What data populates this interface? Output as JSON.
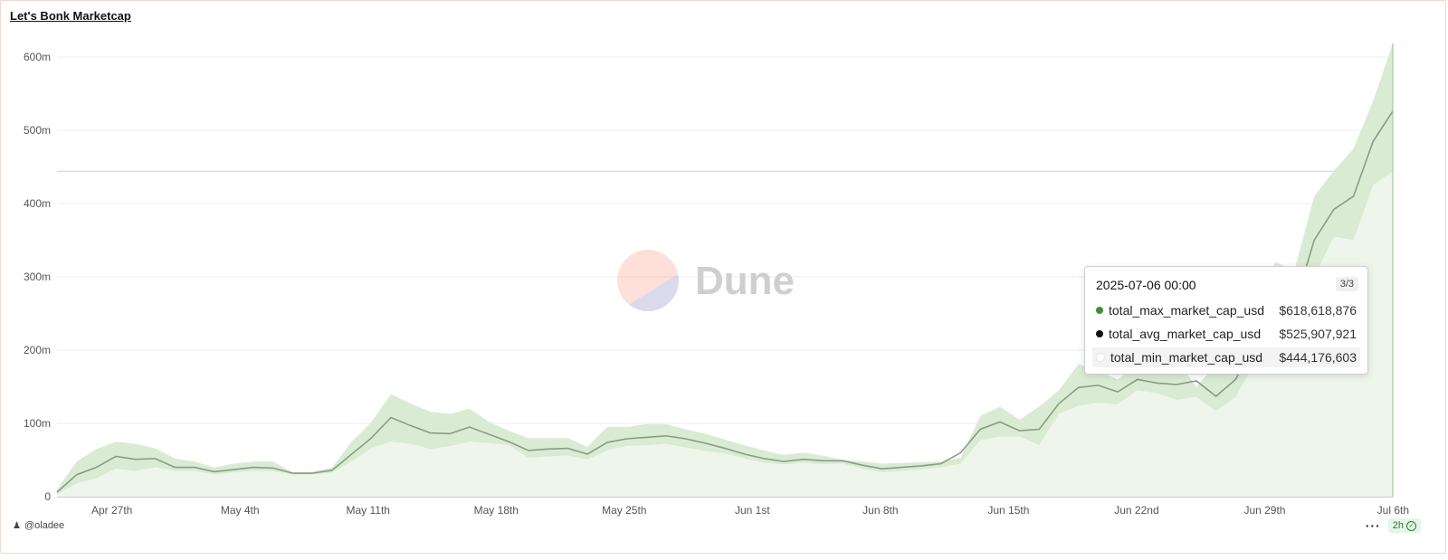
{
  "title": "Let's Bonk Marketcap",
  "author": "@oladee",
  "refresh_label": "2h",
  "menu_label": "···",
  "watermark": "Dune",
  "colors": {
    "band_fill": "#d9ecd3",
    "avg_line": "#8a9a88",
    "max_dot": "#3f8f2f",
    "avg_dot": "#111111",
    "min_dot": "#ffffff"
  },
  "tooltip": {
    "date": "2025-07-06 00:00",
    "page": "3/3",
    "rows": [
      {
        "name": "total_max_market_cap_usd",
        "value": "$618,618,876"
      },
      {
        "name": "total_avg_market_cap_usd",
        "value": "$525,907,921"
      },
      {
        "name": "total_min_market_cap_usd",
        "value": "$444,176,603"
      }
    ]
  },
  "chart_data": {
    "type": "area",
    "x_start": "2025-04-24",
    "x_end": "2025-07-06",
    "x_tick_labels": [
      "Apr 27th",
      "May 4th",
      "May 11th",
      "May 18th",
      "May 25th",
      "Jun 1st",
      "Jun 8th",
      "Jun 15th",
      "Jun 22nd",
      "Jun 29th",
      "Jul 6th"
    ],
    "x_tick_dates": [
      "2025-04-27",
      "2025-05-04",
      "2025-05-11",
      "2025-05-18",
      "2025-05-25",
      "2025-06-01",
      "2025-06-08",
      "2025-06-15",
      "2025-06-22",
      "2025-06-29",
      "2025-07-06"
    ],
    "y_tick_labels": [
      "0",
      "100m",
      "200m",
      "300m",
      "400m",
      "500m",
      "600m"
    ],
    "y_tick_values": [
      0,
      100,
      200,
      300,
      400,
      500,
      600
    ],
    "y_unit": "millions USD",
    "ylim": [
      0,
      600
    ],
    "reference_line": 444.18,
    "series": [
      {
        "name": "total_max_market_cap_usd",
        "values": [
          10,
          48,
          65,
          75,
          72,
          66,
          52,
          48,
          40,
          45,
          48,
          48,
          33,
          34,
          40,
          75,
          102,
          140,
          127,
          116,
          113,
          120,
          102,
          90,
          80,
          80,
          80,
          68,
          95,
          95,
          99,
          99,
          92,
          86,
          78,
          70,
          63,
          57,
          60,
          56,
          50,
          48,
          45,
          46,
          47,
          48,
          53,
          110,
          123,
          105,
          123,
          145,
          181,
          172,
          160,
          182,
          185,
          188,
          150,
          180,
          218,
          250,
          320,
          310,
          410,
          445,
          475,
          540,
          619
        ],
        "color": "#3f8f2f"
      },
      {
        "name": "total_avg_market_cap_usd",
        "values": [
          6,
          30,
          40,
          55,
          51,
          52,
          40,
          40,
          34,
          37,
          40,
          39,
          32,
          32,
          36,
          58,
          80,
          108,
          97,
          87,
          86,
          95,
          85,
          75,
          63,
          65,
          66,
          58,
          74,
          79,
          81,
          83,
          79,
          73,
          66,
          58,
          52,
          48,
          51,
          49,
          49,
          43,
          38,
          40,
          42,
          45,
          60,
          92,
          102,
          90,
          92,
          127,
          149,
          152,
          143,
          160,
          155,
          153,
          158,
          137,
          160,
          210,
          280,
          260,
          350,
          392,
          410,
          485,
          526
        ],
        "color": "#111111"
      },
      {
        "name": "total_min_market_cap_usd",
        "values": [
          3,
          18,
          25,
          38,
          35,
          40,
          35,
          35,
          30,
          33,
          35,
          35,
          30,
          30,
          33,
          48,
          66,
          75,
          72,
          65,
          69,
          75,
          73,
          70,
          53,
          55,
          56,
          51,
          63,
          69,
          70,
          72,
          67,
          62,
          59,
          52,
          46,
          44,
          46,
          44,
          45,
          38,
          33,
          35,
          37,
          40,
          45,
          77,
          82,
          82,
          70,
          113,
          124,
          128,
          126,
          145,
          141,
          132,
          136,
          117,
          136,
          185,
          250,
          235,
          300,
          355,
          350,
          425,
          444
        ],
        "color": "#ffffff"
      }
    ]
  }
}
